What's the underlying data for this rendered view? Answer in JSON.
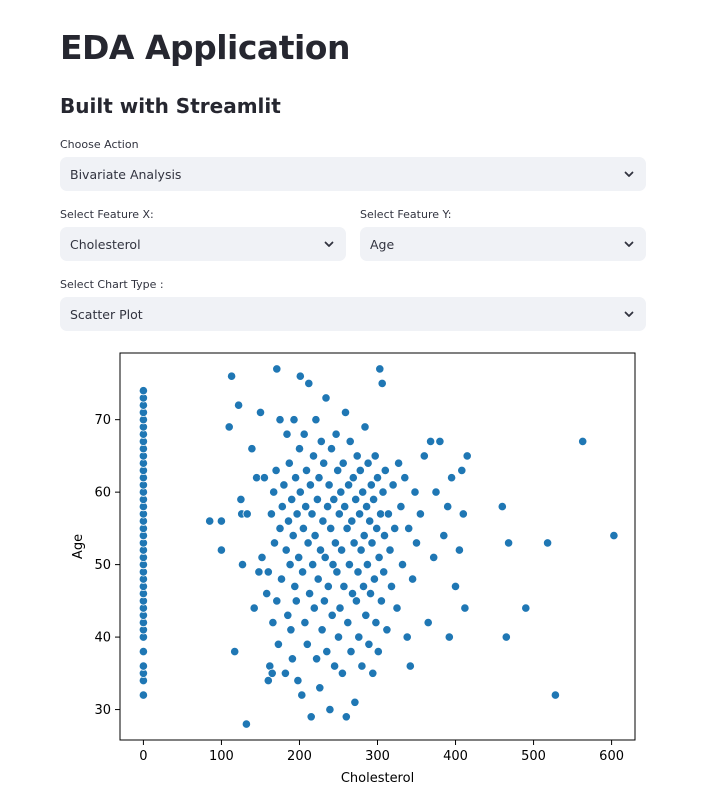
{
  "app": {
    "title": "EDA Application",
    "subtitle": "Built with Streamlit"
  },
  "controls": {
    "action": {
      "label": "Choose Action",
      "value": "Bivariate Analysis"
    },
    "feature_x": {
      "label": "Select Feature X:",
      "value": "Cholesterol"
    },
    "feature_y": {
      "label": "Select Feature Y:",
      "value": "Age"
    },
    "chart_type": {
      "label": "Select Chart Type :",
      "value": "Scatter Plot"
    }
  },
  "icons": {
    "select_arrow": "chevron-down-icon"
  },
  "colors": {
    "point": "#1f77b4",
    "select_bg": "#f0f2f6"
  },
  "chart_data": {
    "type": "scatter",
    "xlabel": "Cholesterol",
    "ylabel": "Age",
    "xlim": [
      -30,
      630
    ],
    "ylim": [
      25.8,
      79.2
    ],
    "xticks": [
      0,
      100,
      200,
      300,
      400,
      500,
      600
    ],
    "yticks": [
      30,
      40,
      50,
      60,
      70
    ],
    "grid": false,
    "points": [
      [
        0,
        32
      ],
      [
        0,
        34
      ],
      [
        0,
        35
      ],
      [
        0,
        36
      ],
      [
        0,
        38
      ],
      [
        0,
        40
      ],
      [
        0,
        41
      ],
      [
        0,
        42
      ],
      [
        0,
        43
      ],
      [
        0,
        44
      ],
      [
        0,
        45
      ],
      [
        0,
        46
      ],
      [
        0,
        47
      ],
      [
        0,
        48
      ],
      [
        0,
        49
      ],
      [
        0,
        50
      ],
      [
        0,
        51
      ],
      [
        0,
        52
      ],
      [
        0,
        53
      ],
      [
        0,
        54
      ],
      [
        0,
        55
      ],
      [
        0,
        56
      ],
      [
        0,
        57
      ],
      [
        0,
        58
      ],
      [
        0,
        59
      ],
      [
        0,
        60
      ],
      [
        0,
        61
      ],
      [
        0,
        62
      ],
      [
        0,
        63
      ],
      [
        0,
        64
      ],
      [
        0,
        65
      ],
      [
        0,
        66
      ],
      [
        0,
        67
      ],
      [
        0,
        68
      ],
      [
        0,
        69
      ],
      [
        0,
        70
      ],
      [
        0,
        71
      ],
      [
        0,
        72
      ],
      [
        0,
        73
      ],
      [
        0,
        74
      ],
      [
        85,
        56
      ],
      [
        100,
        52
      ],
      [
        100,
        56
      ],
      [
        110,
        69
      ],
      [
        113,
        76
      ],
      [
        117,
        38
      ],
      [
        122,
        72
      ],
      [
        125,
        59
      ],
      [
        126,
        57
      ],
      [
        127,
        50
      ],
      [
        132,
        28
      ],
      [
        133,
        57
      ],
      [
        139,
        66
      ],
      [
        142,
        44
      ],
      [
        145,
        62
      ],
      [
        148,
        49
      ],
      [
        150,
        71
      ],
      [
        152,
        51
      ],
      [
        155,
        62
      ],
      [
        158,
        46
      ],
      [
        160,
        49
      ],
      [
        160,
        34
      ],
      [
        162,
        36
      ],
      [
        164,
        57
      ],
      [
        165,
        35
      ],
      [
        166,
        42
      ],
      [
        167,
        60
      ],
      [
        168,
        53
      ],
      [
        170,
        63
      ],
      [
        171,
        77
      ],
      [
        171,
        45
      ],
      [
        173,
        39
      ],
      [
        175,
        55
      ],
      [
        175,
        70
      ],
      [
        177,
        48
      ],
      [
        178,
        58
      ],
      [
        180,
        61
      ],
      [
        182,
        35
      ],
      [
        183,
        52
      ],
      [
        184,
        68
      ],
      [
        185,
        43
      ],
      [
        186,
        56
      ],
      [
        187,
        64
      ],
      [
        188,
        50
      ],
      [
        189,
        41
      ],
      [
        190,
        59
      ],
      [
        191,
        37
      ],
      [
        192,
        54
      ],
      [
        193,
        70
      ],
      [
        194,
        47
      ],
      [
        195,
        62
      ],
      [
        196,
        45
      ],
      [
        197,
        57
      ],
      [
        198,
        34
      ],
      [
        199,
        51
      ],
      [
        200,
        66
      ],
      [
        201,
        60
      ],
      [
        201,
        76
      ],
      [
        203,
        32
      ],
      [
        204,
        49
      ],
      [
        205,
        55
      ],
      [
        206,
        68
      ],
      [
        207,
        42
      ],
      [
        208,
        58
      ],
      [
        209,
        63
      ],
      [
        210,
        39
      ],
      [
        211,
        53
      ],
      [
        212,
        75
      ],
      [
        213,
        46
      ],
      [
        214,
        61
      ],
      [
        215,
        29
      ],
      [
        216,
        57
      ],
      [
        217,
        50
      ],
      [
        218,
        65
      ],
      [
        219,
        44
      ],
      [
        220,
        54
      ],
      [
        221,
        70
      ],
      [
        222,
        37
      ],
      [
        223,
        59
      ],
      [
        224,
        48
      ],
      [
        225,
        62
      ],
      [
        226,
        33
      ],
      [
        227,
        52
      ],
      [
        228,
        67
      ],
      [
        229,
        41
      ],
      [
        230,
        56
      ],
      [
        231,
        64
      ],
      [
        232,
        45
      ],
      [
        233,
        51
      ],
      [
        234,
        73
      ],
      [
        235,
        38
      ],
      [
        236,
        58
      ],
      [
        237,
        47
      ],
      [
        238,
        61
      ],
      [
        239,
        30
      ],
      [
        240,
        55
      ],
      [
        241,
        66
      ],
      [
        242,
        43
      ],
      [
        243,
        50
      ],
      [
        244,
        59
      ],
      [
        245,
        36
      ],
      [
        246,
        53
      ],
      [
        247,
        68
      ],
      [
        248,
        49
      ],
      [
        249,
        63
      ],
      [
        250,
        40
      ],
      [
        251,
        57
      ],
      [
        252,
        44
      ],
      [
        253,
        60
      ],
      [
        254,
        52
      ],
      [
        255,
        35
      ],
      [
        256,
        64
      ],
      [
        257,
        47
      ],
      [
        258,
        58
      ],
      [
        259,
        71
      ],
      [
        260,
        29
      ],
      [
        261,
        55
      ],
      [
        262,
        42
      ],
      [
        263,
        61
      ],
      [
        264,
        50
      ],
      [
        265,
        67
      ],
      [
        266,
        38
      ],
      [
        267,
        56
      ],
      [
        268,
        46
      ],
      [
        269,
        62
      ],
      [
        270,
        53
      ],
      [
        271,
        31
      ],
      [
        272,
        59
      ],
      [
        273,
        45
      ],
      [
        274,
        65
      ],
      [
        275,
        49
      ],
      [
        276,
        40
      ],
      [
        277,
        57
      ],
      [
        278,
        63
      ],
      [
        279,
        52
      ],
      [
        280,
        36
      ],
      [
        281,
        60
      ],
      [
        282,
        47
      ],
      [
        283,
        54
      ],
      [
        284,
        69
      ],
      [
        285,
        43
      ],
      [
        286,
        58
      ],
      [
        287,
        50
      ],
      [
        288,
        64
      ],
      [
        289,
        39
      ],
      [
        290,
        56
      ],
      [
        291,
        46
      ],
      [
        292,
        61
      ],
      [
        293,
        53
      ],
      [
        294,
        35
      ],
      [
        295,
        59
      ],
      [
        296,
        48
      ],
      [
        297,
        65
      ],
      [
        298,
        42
      ],
      [
        299,
        55
      ],
      [
        300,
        62
      ],
      [
        301,
        38
      ],
      [
        302,
        51
      ],
      [
        303,
        77
      ],
      [
        304,
        57
      ],
      [
        305,
        45
      ],
      [
        306,
        75
      ],
      [
        307,
        60
      ],
      [
        308,
        49
      ],
      [
        309,
        54
      ],
      [
        310,
        63
      ],
      [
        312,
        41
      ],
      [
        314,
        57
      ],
      [
        316,
        52
      ],
      [
        318,
        47
      ],
      [
        320,
        61
      ],
      [
        322,
        55
      ],
      [
        325,
        44
      ],
      [
        327,
        64
      ],
      [
        330,
        58
      ],
      [
        332,
        50
      ],
      [
        335,
        62
      ],
      [
        338,
        40
      ],
      [
        340,
        55
      ],
      [
        342,
        36
      ],
      [
        345,
        48
      ],
      [
        348,
        60
      ],
      [
        350,
        53
      ],
      [
        355,
        57
      ],
      [
        360,
        65
      ],
      [
        365,
        42
      ],
      [
        368,
        67
      ],
      [
        372,
        51
      ],
      [
        375,
        60
      ],
      [
        380,
        67
      ],
      [
        385,
        54
      ],
      [
        390,
        58
      ],
      [
        392,
        40
      ],
      [
        395,
        62
      ],
      [
        400,
        47
      ],
      [
        405,
        52
      ],
      [
        408,
        63
      ],
      [
        410,
        57
      ],
      [
        412,
        44
      ],
      [
        415,
        65
      ],
      [
        460,
        58
      ],
      [
        465,
        40
      ],
      [
        468,
        53
      ],
      [
        490,
        44
      ],
      [
        518,
        53
      ],
      [
        528,
        32
      ],
      [
        563,
        67
      ],
      [
        603,
        54
      ]
    ]
  }
}
